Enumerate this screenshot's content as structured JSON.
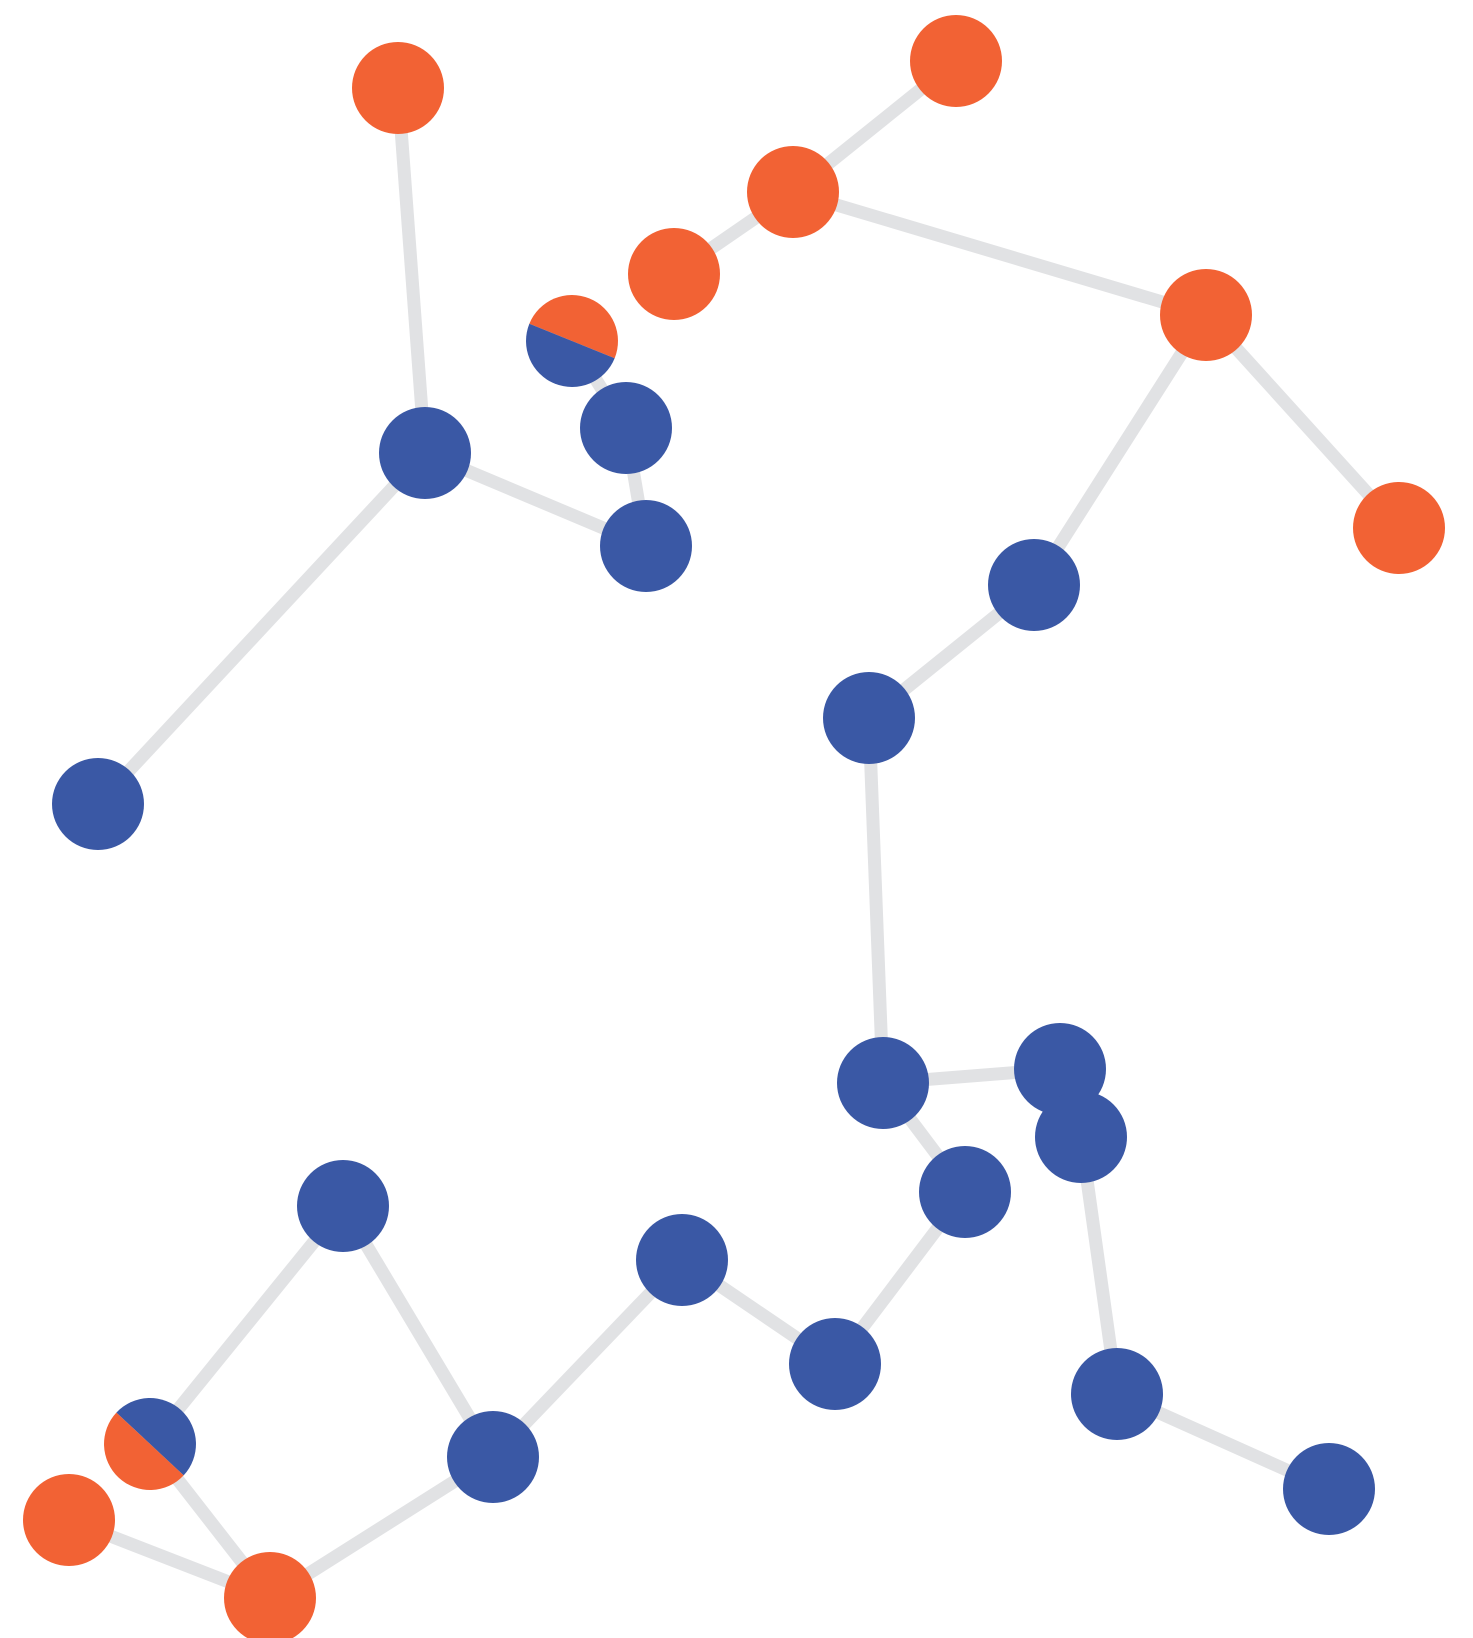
{
  "colors": {
    "background": "#ffffff",
    "edge": "#e1e2e4",
    "group_a": "#f26234",
    "group_b": "#3a58a5"
  },
  "nodes": [
    {
      "id": "n01",
      "fill": [
        "group_a"
      ]
    },
    {
      "id": "n02",
      "fill": [
        "group_a"
      ]
    },
    {
      "id": "n03",
      "fill": [
        "group_a"
      ]
    },
    {
      "id": "n04",
      "fill": [
        "group_a"
      ]
    },
    {
      "id": "n05",
      "fill": [
        "group_a"
      ]
    },
    {
      "id": "n06",
      "fill": [
        "group_a"
      ]
    },
    {
      "id": "n07",
      "fill": [
        "group_a",
        "group_b"
      ]
    },
    {
      "id": "n08",
      "fill": [
        "group_b"
      ]
    },
    {
      "id": "n09",
      "fill": [
        "group_b"
      ]
    },
    {
      "id": "n10",
      "fill": [
        "group_b"
      ]
    },
    {
      "id": "n11",
      "fill": [
        "group_b"
      ]
    },
    {
      "id": "n12",
      "fill": [
        "group_b"
      ]
    },
    {
      "id": "n13",
      "fill": [
        "group_b"
      ]
    },
    {
      "id": "n14",
      "fill": [
        "group_b"
      ]
    },
    {
      "id": "n15",
      "fill": [
        "group_b"
      ]
    },
    {
      "id": "n16",
      "fill": [
        "group_b"
      ]
    },
    {
      "id": "n17",
      "fill": [
        "group_b"
      ]
    },
    {
      "id": "n18",
      "fill": [
        "group_b"
      ]
    },
    {
      "id": "n19",
      "fill": [
        "group_b"
      ]
    },
    {
      "id": "n20",
      "fill": [
        "group_b"
      ]
    },
    {
      "id": "n21",
      "fill": [
        "group_b"
      ]
    },
    {
      "id": "n22",
      "fill": [
        "group_b"
      ]
    },
    {
      "id": "n23",
      "fill": [
        "group_b"
      ]
    },
    {
      "id": "n24",
      "fill": [
        "group_a",
        "group_b"
      ]
    },
    {
      "id": "n25",
      "fill": [
        "group_a"
      ]
    },
    {
      "id": "n26",
      "fill": [
        "group_a"
      ]
    }
  ],
  "edges": [
    [
      "n01",
      "n09"
    ],
    [
      "n02",
      "n03"
    ],
    [
      "n03",
      "n04"
    ],
    [
      "n03",
      "n05"
    ],
    [
      "n05",
      "n06"
    ],
    [
      "n05",
      "n12"
    ],
    [
      "n07",
      "n10"
    ],
    [
      "n10",
      "n11"
    ],
    [
      "n09",
      "n11"
    ],
    [
      "n09",
      "n13"
    ],
    [
      "n12",
      "n14"
    ],
    [
      "n14",
      "n15"
    ],
    [
      "n15",
      "n16"
    ],
    [
      "n16",
      "n17"
    ],
    [
      "n16",
      "n19"
    ],
    [
      "n17",
      "n18"
    ],
    [
      "n18",
      "n21"
    ],
    [
      "n21",
      "n22"
    ],
    [
      "n19",
      "n20"
    ],
    [
      "n20",
      "n23"
    ],
    [
      "n23",
      "n27"
    ],
    [
      "n27",
      "n28"
    ],
    [
      "n28",
      "n24"
    ],
    [
      "n28",
      "n26"
    ],
    [
      "n24",
      "n26"
    ],
    [
      "n25",
      "n26"
    ],
    [
      "n26",
      "n29"
    ],
    [
      "n29",
      "n23"
    ]
  ]
}
